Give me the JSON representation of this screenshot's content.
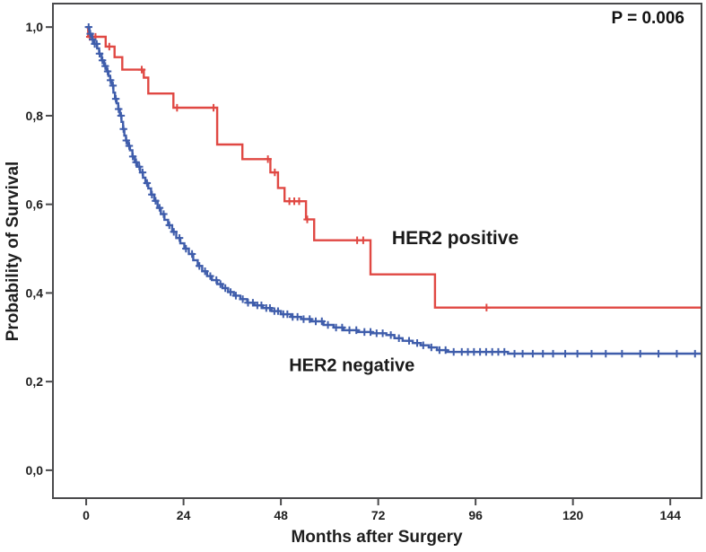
{
  "figure": {
    "p_value_label": "P = 0.006",
    "x_axis_title": "Months after Surgery",
    "y_axis_title": "Probability of Survival"
  },
  "colors": {
    "frame": "#4a4a4c",
    "tick_text": "#1f1f1f",
    "annotation_text": "#111111",
    "her2_positive": "#e04843",
    "her2_negative": "#3f5dab"
  },
  "chart_data": {
    "type": "line",
    "subtype": "kaplan-meier-step",
    "title": "",
    "xlabel": "Months after Surgery",
    "ylabel": "Probability of Survival",
    "annotation": "P = 0.006",
    "grid": false,
    "legend_position": "inline-labels",
    "xlim": [
      -8.2,
      151.7
    ],
    "ylim": [
      -0.063,
      1.053
    ],
    "x_ticks": [
      0,
      24,
      48,
      72,
      96,
      120,
      144
    ],
    "x_tick_labels": [
      "0",
      "24",
      "48",
      "72",
      "96",
      "120",
      "144"
    ],
    "y_ticks": [
      0,
      0.2,
      0.4,
      0.6,
      0.8,
      1.0
    ],
    "y_tick_labels": [
      "0,0",
      "0,2",
      "0,4",
      "0,6",
      "0,8",
      "1,0"
    ],
    "series": [
      {
        "name": "HER2 positive",
        "color": "#e04843",
        "label": {
          "text": "HER2 positive",
          "month": 91,
          "prob": 0.525,
          "font_px": 21
        },
        "end_month": 151.5,
        "steps": [
          [
            0,
            1.0
          ],
          [
            0.5,
            0.978
          ],
          [
            4.8,
            0.956
          ],
          [
            7.0,
            0.932
          ],
          [
            8.9,
            0.904
          ],
          [
            14.2,
            0.886
          ],
          [
            15.3,
            0.85
          ],
          [
            21.5,
            0.818
          ],
          [
            32.3,
            0.735
          ],
          [
            38.5,
            0.702
          ],
          [
            45.4,
            0.672
          ],
          [
            47.3,
            0.637
          ],
          [
            48.9,
            0.607
          ],
          [
            54.2,
            0.566
          ],
          [
            56.2,
            0.519
          ],
          [
            70.1,
            0.442
          ],
          [
            86.0,
            0.367
          ]
        ],
        "censor_months": [
          0.9,
          1.6,
          2.3,
          5.7,
          13.7,
          22.4,
          31.4,
          44.8,
          46.5,
          50.1,
          51.3,
          52.5,
          54.5,
          66.8,
          68.3,
          98.7
        ]
      },
      {
        "name": "HER2 negative",
        "color": "#3f5dab",
        "label": {
          "text": "HER2 negative",
          "month": 65.5,
          "prob": 0.238,
          "font_px": 20
        },
        "end_month": 151.5,
        "steps": [
          [
            0,
            1.0
          ],
          [
            0.8,
            0.985
          ],
          [
            1.4,
            0.972
          ],
          [
            2.0,
            0.962
          ],
          [
            2.7,
            0.952
          ],
          [
            3.2,
            0.94
          ],
          [
            3.8,
            0.925
          ],
          [
            4.4,
            0.912
          ],
          [
            5.0,
            0.9
          ],
          [
            5.5,
            0.89
          ],
          [
            5.9,
            0.88
          ],
          [
            6.3,
            0.868
          ],
          [
            6.7,
            0.852
          ],
          [
            7.1,
            0.838
          ],
          [
            7.5,
            0.828
          ],
          [
            7.9,
            0.815
          ],
          [
            8.3,
            0.8
          ],
          [
            8.7,
            0.786
          ],
          [
            9.1,
            0.77
          ],
          [
            9.4,
            0.755
          ],
          [
            9.8,
            0.744
          ],
          [
            10.3,
            0.732
          ],
          [
            10.8,
            0.722
          ],
          [
            11.4,
            0.708
          ],
          [
            12.0,
            0.695
          ],
          [
            12.6,
            0.685
          ],
          [
            13.3,
            0.672
          ],
          [
            14.0,
            0.66
          ],
          [
            14.6,
            0.648
          ],
          [
            15.3,
            0.636
          ],
          [
            16.0,
            0.622
          ],
          [
            16.8,
            0.608
          ],
          [
            17.6,
            0.592
          ],
          [
            18.4,
            0.578
          ],
          [
            19.3,
            0.565
          ],
          [
            20.2,
            0.553
          ],
          [
            21.2,
            0.538
          ],
          [
            22.2,
            0.524
          ],
          [
            23.2,
            0.512
          ],
          [
            24.2,
            0.5
          ],
          [
            25.3,
            0.488
          ],
          [
            26.4,
            0.474
          ],
          [
            27.5,
            0.461
          ],
          [
            28.6,
            0.449
          ],
          [
            29.8,
            0.438
          ],
          [
            31.0,
            0.429
          ],
          [
            32.3,
            0.42
          ],
          [
            33.6,
            0.411
          ],
          [
            35.0,
            0.402
          ],
          [
            36.4,
            0.394
          ],
          [
            38.0,
            0.386
          ],
          [
            39.7,
            0.378
          ],
          [
            41.5,
            0.372
          ],
          [
            43.5,
            0.366
          ],
          [
            45.7,
            0.359
          ],
          [
            48.0,
            0.352
          ],
          [
            50.5,
            0.346
          ],
          [
            53.0,
            0.341
          ],
          [
            55.5,
            0.336
          ],
          [
            58.5,
            0.328
          ],
          [
            61.0,
            0.322
          ],
          [
            63.5,
            0.316
          ],
          [
            67.0,
            0.312
          ],
          [
            70.5,
            0.309
          ],
          [
            74.0,
            0.305
          ],
          [
            76.0,
            0.298
          ],
          [
            78.0,
            0.292
          ],
          [
            80.5,
            0.287
          ],
          [
            82.5,
            0.282
          ],
          [
            84.5,
            0.277
          ],
          [
            86.5,
            0.271
          ],
          [
            89.0,
            0.267
          ],
          [
            104.0,
            0.263
          ]
        ],
        "censor_months": [
          0.6,
          1.0,
          1.6,
          2.1,
          2.6,
          3.3,
          4.0,
          4.7,
          5.3,
          6.0,
          6.6,
          7.3,
          8.0,
          8.6,
          9.2,
          9.9,
          10.6,
          11.5,
          12.3,
          13.1,
          13.9,
          15.0,
          16.2,
          17.1,
          18.1,
          19.1,
          20.5,
          21.6,
          23.0,
          24.6,
          26.1,
          27.9,
          29.3,
          30.6,
          32.1,
          33.1,
          34.3,
          35.6,
          36.9,
          38.6,
          39.9,
          41.1,
          42.2,
          43.2,
          44.4,
          45.3,
          46.4,
          47.3,
          48.6,
          49.6,
          50.9,
          52.1,
          53.6,
          55.1,
          56.6,
          58.1,
          59.6,
          61.6,
          63.1,
          64.9,
          66.6,
          68.6,
          70.1,
          71.6,
          73.1,
          75.1,
          77.1,
          79.6,
          81.6,
          83.1,
          85.1,
          87.1,
          88.6,
          90.6,
          92.6,
          94.1,
          95.6,
          97.1,
          98.6,
          100.1,
          101.6,
          103.1,
          105.6,
          107.6,
          110.1,
          112.6,
          115.1,
          118.1,
          121.1,
          124.6,
          128.1,
          132.1,
          136.6,
          141.1,
          145.6,
          150.1
        ]
      }
    ]
  }
}
